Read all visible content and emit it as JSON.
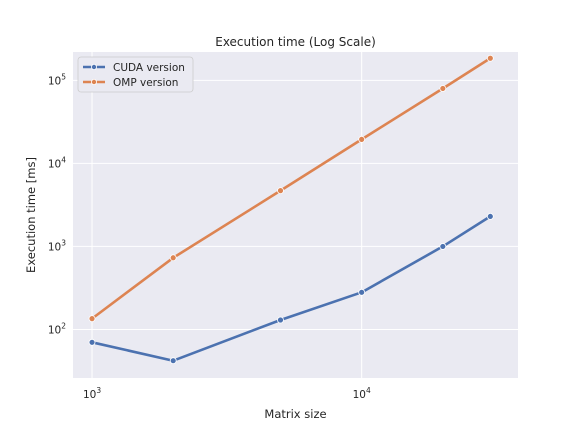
{
  "chart_data": {
    "type": "line",
    "title": "Execution time (Log Scale)",
    "xlabel": "Matrix size",
    "ylabel": "Execution time [ms]",
    "xscale": "log",
    "yscale": "log",
    "xlim": [
      850,
      38000
    ],
    "ylim": [
      26,
      220000
    ],
    "x": [
      1000,
      2000,
      5000,
      10000,
      20000,
      30000
    ],
    "xticks": [
      {
        "value": 1000,
        "base": "10",
        "exp": "3"
      },
      {
        "value": 10000,
        "base": "10",
        "exp": "4"
      }
    ],
    "yticks": [
      {
        "value": 100,
        "base": "10",
        "exp": "2"
      },
      {
        "value": 1000,
        "base": "10",
        "exp": "3"
      },
      {
        "value": 10000,
        "base": "10",
        "exp": "4"
      },
      {
        "value": 100000,
        "base": "10",
        "exp": "5"
      }
    ],
    "grid": true,
    "legend_position": "top-left",
    "series": [
      {
        "name": "CUDA version",
        "color": "#4c72b0",
        "values": [
          70,
          42,
          130,
          280,
          1000,
          2300
        ]
      },
      {
        "name": "OMP version",
        "color": "#dd8452",
        "values": [
          135,
          730,
          4700,
          19500,
          80000,
          185000
        ]
      }
    ],
    "colors": {
      "plot_background": "#eaeaf2",
      "grid": "#ffffff"
    }
  }
}
